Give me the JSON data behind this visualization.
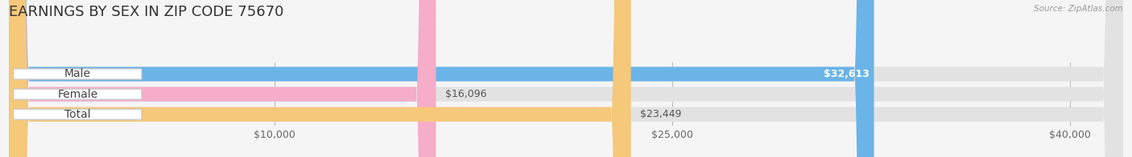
{
  "title": "EARNINGS BY SEX IN ZIP CODE 75670",
  "source": "Source: ZipAtlas.com",
  "categories": [
    "Male",
    "Female",
    "Total"
  ],
  "values": [
    32613,
    16096,
    23449
  ],
  "bar_colors": [
    "#6ab4e8",
    "#f5adc8",
    "#f5c87a"
  ],
  "value_labels": [
    "$32,613",
    "$16,096",
    "$23,449"
  ],
  "bg_color": "#f5f5f5",
  "bar_bg_color": "#e2e2e2",
  "xlim": [
    0,
    42000
  ],
  "xticks": [
    10000,
    25000,
    40000
  ],
  "xtick_labels": [
    "$10,000",
    "$25,000",
    "$40,000"
  ],
  "title_fontsize": 13,
  "tick_fontsize": 9,
  "label_fontsize": 10,
  "value_fontsize": 9
}
